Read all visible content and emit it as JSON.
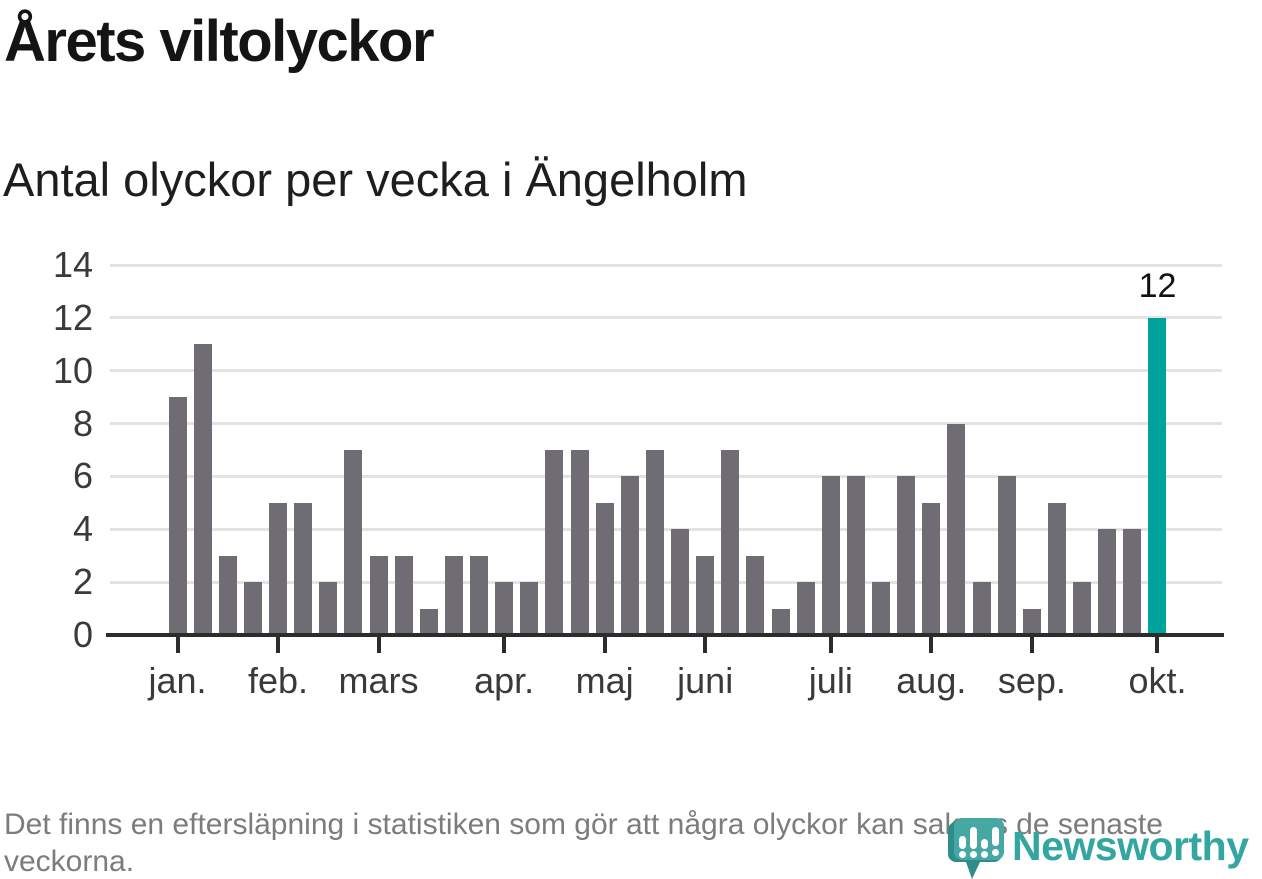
{
  "header": {
    "title": "Årets viltolyckor",
    "subtitle": "Antal olyckor per vecka i Ängelholm"
  },
  "chart_data": {
    "type": "bar",
    "title": "Årets viltolyckor",
    "subtitle": "Antal olyckor per vecka i Ängelholm",
    "x_unit": "vecka (week number)",
    "weeks": [
      1,
      2,
      3,
      4,
      5,
      6,
      7,
      8,
      9,
      10,
      11,
      12,
      13,
      14,
      15,
      16,
      17,
      18,
      19,
      20,
      21,
      22,
      23,
      24,
      25,
      26,
      27,
      28,
      29,
      30,
      31,
      32,
      33,
      34,
      35,
      36,
      37,
      38,
      39,
      40
    ],
    "values": [
      9,
      11,
      3,
      2,
      5,
      5,
      2,
      7,
      3,
      3,
      1,
      3,
      3,
      2,
      2,
      7,
      7,
      5,
      6,
      7,
      4,
      3,
      7,
      3,
      1,
      2,
      6,
      6,
      2,
      6,
      5,
      8,
      2,
      6,
      1,
      5,
      2,
      4,
      4,
      12
    ],
    "highlight_index": 39,
    "highlight_label": "12",
    "ylim": [
      0,
      14
    ],
    "y_ticks": [
      0,
      2,
      4,
      6,
      8,
      10,
      12,
      14
    ],
    "y_tick_labels": [
      "0",
      "2",
      "4",
      "6",
      "8",
      "10",
      "12",
      "14"
    ],
    "x_tick_weeks": [
      1,
      5,
      9,
      14,
      18,
      22,
      27,
      31,
      35,
      40
    ],
    "x_tick_labels": [
      "jan.",
      "feb.",
      "mars",
      "apr.",
      "maj",
      "juni",
      "juli",
      "aug.",
      "sep.",
      "okt."
    ],
    "grid": true,
    "legend": "none",
    "colors": {
      "bar": "#6f6c73",
      "highlight": "#00a39b",
      "grid": "#e3e3e3",
      "axis": "#2c2c2c",
      "logo_teal": "#33a6a1",
      "logo_teal_dark": "#2e8c89",
      "logo_teal_mid": "#47a7a2"
    }
  },
  "footer": {
    "note": "Det finns en eftersläpning i statistiken som gör att några olyckor kan saknas de senaste veckorna.",
    "logo_text": "Newsworthy"
  }
}
